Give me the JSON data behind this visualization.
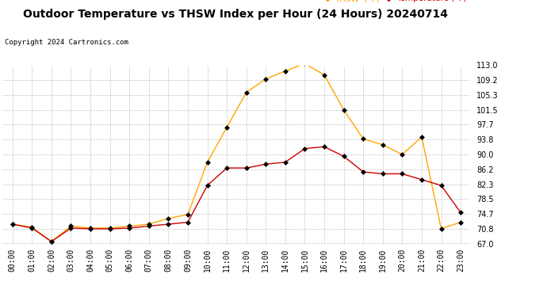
{
  "title": "Outdoor Temperature vs THSW Index per Hour (24 Hours) 20240714",
  "copyright": "Copyright 2024 Cartronics.com",
  "legend_thsw": "THSW  (°F)",
  "legend_temp": "Temperature (°F)",
  "hours": [
    "00:00",
    "01:00",
    "02:00",
    "03:00",
    "04:00",
    "05:00",
    "06:00",
    "07:00",
    "08:00",
    "09:00",
    "10:00",
    "11:00",
    "12:00",
    "13:00",
    "14:00",
    "15:00",
    "16:00",
    "17:00",
    "18:00",
    "19:00",
    "20:00",
    "21:00",
    "22:00",
    "23:00"
  ],
  "thsw": [
    72.0,
    71.2,
    67.5,
    71.5,
    71.0,
    71.0,
    71.5,
    72.0,
    73.5,
    74.5,
    88.0,
    97.0,
    106.0,
    109.5,
    111.5,
    113.5,
    110.5,
    101.5,
    94.0,
    92.5,
    90.0,
    94.5,
    70.8,
    72.5
  ],
  "temperature": [
    72.0,
    71.0,
    67.5,
    71.0,
    70.8,
    70.8,
    71.0,
    71.5,
    72.0,
    72.5,
    82.0,
    86.5,
    86.5,
    87.5,
    88.0,
    91.5,
    92.0,
    89.5,
    85.5,
    85.0,
    85.0,
    83.5,
    82.0,
    75.0
  ],
  "ylim": [
    67.0,
    113.0
  ],
  "yticks": [
    67.0,
    70.8,
    74.7,
    78.5,
    82.3,
    86.2,
    90.0,
    93.8,
    97.7,
    101.5,
    105.3,
    109.2,
    113.0
  ],
  "thsw_color": "#FFA500",
  "temp_color": "#CC0000",
  "marker_color": "#000000",
  "bg_color": "#ffffff",
  "grid_color": "#bbbbbb",
  "title_fontsize": 10,
  "copyright_fontsize": 6.5,
  "legend_fontsize": 7.5,
  "axis_tick_fontsize": 7
}
